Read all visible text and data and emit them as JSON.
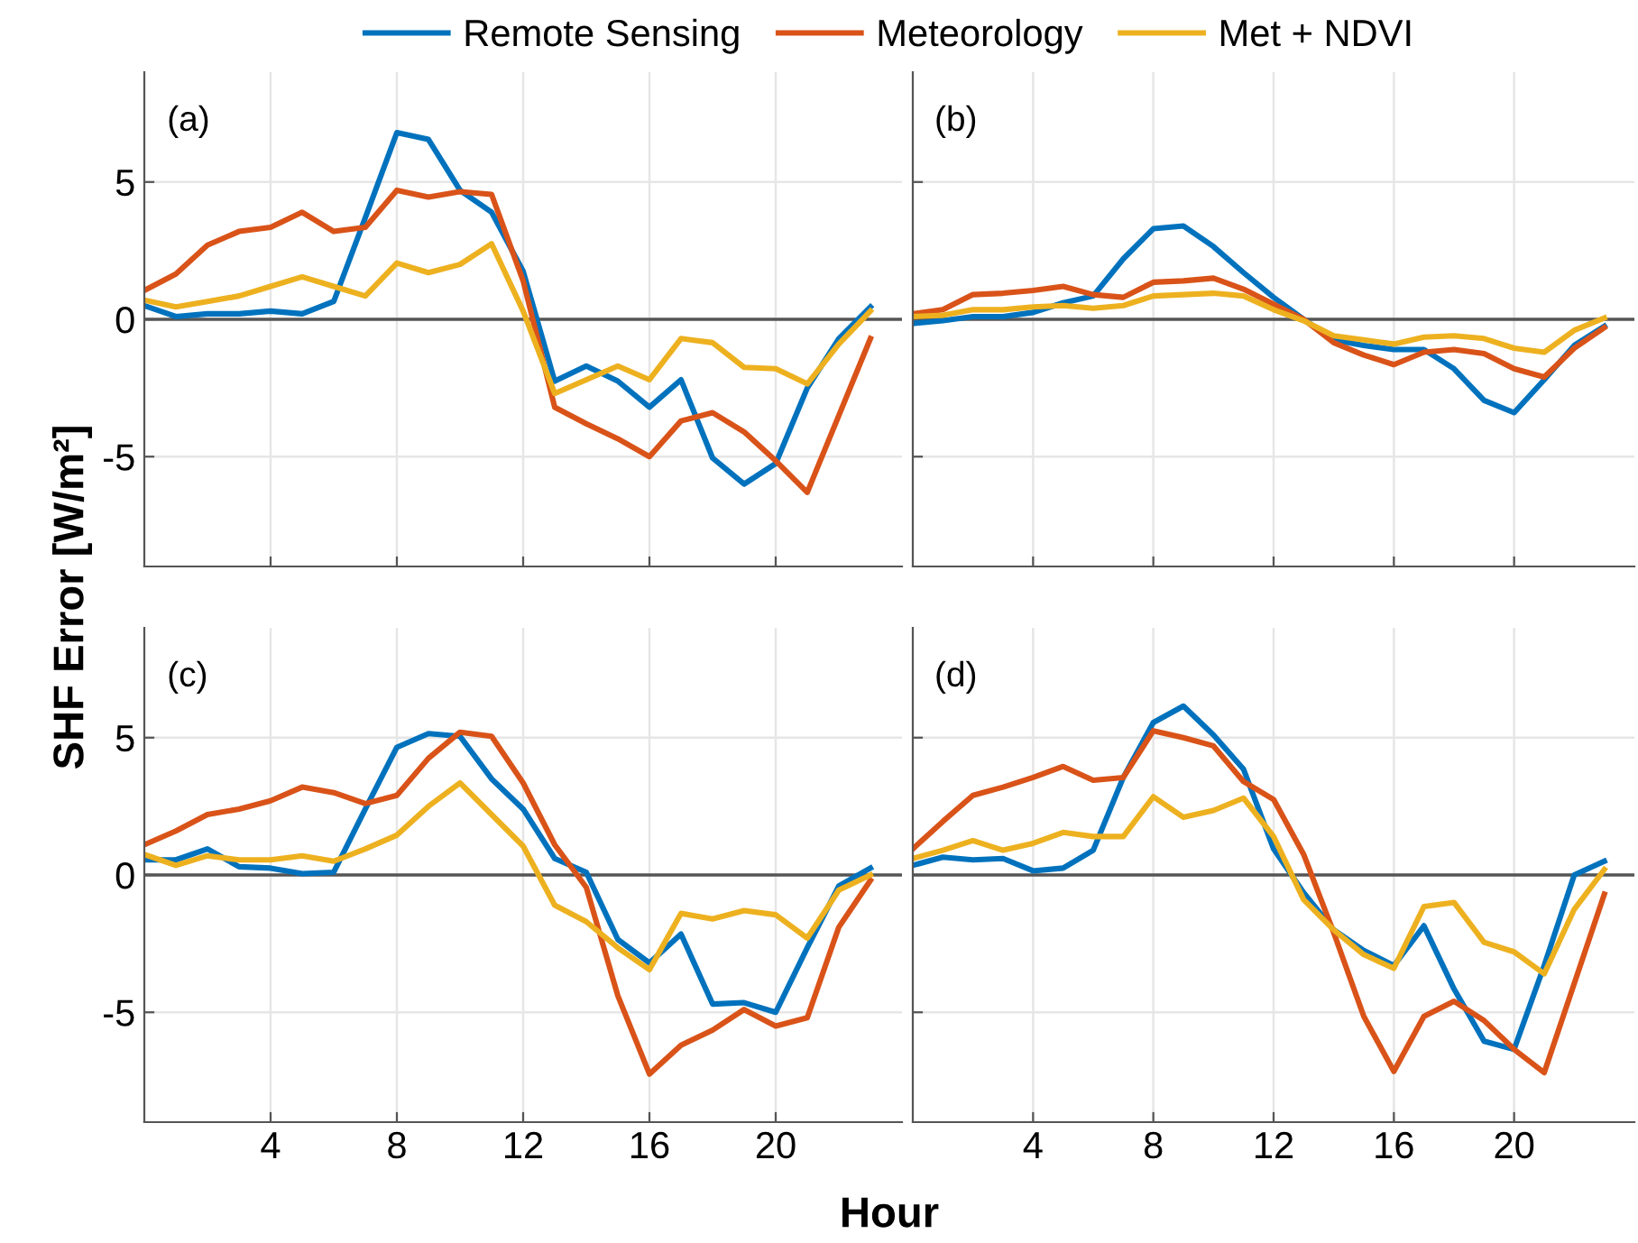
{
  "chart_data": [
    {
      "type": "line",
      "annotations": [
        "(a)"
      ],
      "ylabel": "SHF Error [W/m²]",
      "legend": "top",
      "grid": true,
      "tick_labels": "y",
      "xlim": [
        0,
        24
      ],
      "ylim": [
        -9,
        9
      ],
      "xticks": [
        4,
        8,
        12,
        16,
        20
      ],
      "yticks": [
        -5,
        0,
        5
      ],
      "ref_lines": [
        {
          "axis": "y",
          "value": 0,
          "color": "#555555"
        }
      ],
      "x": [
        0,
        1,
        2,
        3,
        4,
        5,
        6,
        7,
        8,
        9,
        10,
        11,
        12,
        13,
        14,
        15,
        16,
        17,
        18,
        19,
        20,
        21,
        22,
        23
      ],
      "series": [
        {
          "name": "Remote Sensing",
          "color": "#0072bd",
          "values": [
            0.5,
            0.1,
            0.2,
            0.2,
            0.3,
            0.2,
            0.65,
            3.7,
            6.8,
            6.55,
            4.7,
            3.9,
            1.75,
            -2.25,
            -1.7,
            -2.25,
            -3.2,
            -2.2,
            -5.05,
            -6.0,
            -5.25,
            -2.5,
            -0.7,
            0.45
          ]
        },
        {
          "name": "Meteorology",
          "color": "#d95319",
          "values": [
            1.05,
            1.65,
            2.7,
            3.2,
            3.35,
            3.9,
            3.2,
            3.35,
            4.7,
            4.45,
            4.65,
            4.55,
            1.4,
            -3.2,
            -3.8,
            -4.35,
            -5.0,
            -3.7,
            -3.4,
            -4.1,
            -5.15,
            -6.3,
            -3.5,
            -0.7
          ]
        },
        {
          "name": "Met + NDVI",
          "color": "#edb120",
          "values": [
            0.7,
            0.45,
            0.65,
            0.85,
            1.2,
            1.55,
            1.2,
            0.85,
            2.05,
            1.7,
            2.0,
            2.75,
            0.3,
            -2.7,
            -2.2,
            -1.7,
            -2.2,
            -0.7,
            -0.85,
            -1.75,
            -1.8,
            -2.35,
            -0.9,
            0.3
          ]
        }
      ]
    },
    {
      "type": "line",
      "annotations": [
        "(b)"
      ],
      "grid": true,
      "tick_labels": false,
      "xlim": [
        0,
        24
      ],
      "ylim": [
        -9,
        9
      ],
      "xticks": [
        4,
        8,
        12,
        16,
        20
      ],
      "yticks": [
        -5,
        0,
        5
      ],
      "ref_lines": [
        {
          "axis": "y",
          "value": 0,
          "color": "#555555"
        }
      ],
      "x": [
        0,
        1,
        2,
        3,
        4,
        5,
        6,
        7,
        8,
        9,
        10,
        11,
        12,
        13,
        14,
        15,
        16,
        17,
        18,
        19,
        20,
        21,
        22,
        23
      ],
      "series": [
        {
          "color": "#0072bd",
          "values": [
            -0.15,
            -0.05,
            0.1,
            0.1,
            0.25,
            0.6,
            0.85,
            2.2,
            3.3,
            3.4,
            2.65,
            1.7,
            0.8,
            0,
            -0.75,
            -0.95,
            -1.1,
            -1.1,
            -1.8,
            -2.95,
            -3.4,
            -2.2,
            -0.95,
            -0.25
          ]
        },
        {
          "color": "#d95319",
          "values": [
            0.2,
            0.35,
            0.9,
            0.95,
            1.05,
            1.2,
            0.9,
            0.8,
            1.35,
            1.4,
            1.5,
            1.1,
            0.55,
            0,
            -0.85,
            -1.3,
            -1.65,
            -1.2,
            -1.1,
            -1.25,
            -1.8,
            -2.1,
            -1.05,
            -0.3
          ]
        },
        {
          "color": "#edb120",
          "values": [
            0.1,
            0.15,
            0.35,
            0.35,
            0.45,
            0.5,
            0.4,
            0.5,
            0.85,
            0.9,
            0.95,
            0.85,
            0.35,
            -0.05,
            -0.6,
            -0.75,
            -0.9,
            -0.65,
            -0.6,
            -0.7,
            -1.05,
            -1.2,
            -0.4,
            0.05
          ]
        }
      ]
    },
    {
      "type": "line",
      "annotations": [
        "(c)"
      ],
      "xlabel": "Hour",
      "grid": true,
      "xlim": [
        0,
        24
      ],
      "ylim": [
        -9,
        9
      ],
      "xticks": [
        4,
        8,
        12,
        16,
        20
      ],
      "yticks": [
        -5,
        0,
        5
      ],
      "ref_lines": [
        {
          "axis": "y",
          "value": 0,
          "color": "#555555"
        }
      ],
      "x": [
        0,
        1,
        2,
        3,
        4,
        5,
        6,
        7,
        8,
        9,
        10,
        11,
        12,
        13,
        14,
        15,
        16,
        17,
        18,
        19,
        20,
        21,
        22,
        23
      ],
      "series": [
        {
          "color": "#0072bd",
          "values": [
            0.55,
            0.55,
            0.95,
            0.3,
            0.25,
            0.05,
            0.1,
            2.4,
            4.65,
            5.15,
            5.05,
            3.5,
            2.4,
            0.6,
            0.1,
            -2.35,
            -3.2,
            -2.15,
            -4.7,
            -4.65,
            -5.0,
            -2.65,
            -0.4,
            0.25
          ]
        },
        {
          "color": "#d95319",
          "values": [
            1.1,
            1.6,
            2.2,
            2.4,
            2.7,
            3.2,
            3.0,
            2.6,
            2.9,
            4.25,
            5.2,
            5.05,
            3.35,
            1.1,
            -0.45,
            -4.4,
            -7.25,
            -6.2,
            -5.65,
            -4.9,
            -5.5,
            -5.2,
            -1.9,
            -0.2
          ]
        },
        {
          "color": "#edb120",
          "values": [
            0.75,
            0.35,
            0.7,
            0.55,
            0.55,
            0.7,
            0.5,
            0.95,
            1.45,
            2.5,
            3.35,
            2.2,
            1.05,
            -1.1,
            -1.7,
            -2.65,
            -3.45,
            -1.4,
            -1.6,
            -1.3,
            -1.45,
            -2.3,
            -0.55,
            0
          ]
        }
      ]
    },
    {
      "type": "line",
      "annotations": [
        "(d)"
      ],
      "grid": true,
      "tick_labels": "x",
      "xlim": [
        0,
        24
      ],
      "ylim": [
        -9,
        9
      ],
      "xticks": [
        4,
        8,
        12,
        16,
        20
      ],
      "yticks": [
        -5,
        0,
        5
      ],
      "ref_lines": [
        {
          "axis": "y",
          "value": 0,
          "color": "#555555"
        }
      ],
      "x": [
        0,
        1,
        2,
        3,
        4,
        5,
        6,
        7,
        8,
        9,
        10,
        11,
        12,
        13,
        14,
        15,
        16,
        17,
        18,
        19,
        20,
        21,
        22,
        23
      ],
      "series": [
        {
          "color": "#0072bd",
          "values": [
            0.35,
            0.65,
            0.55,
            0.6,
            0.15,
            0.25,
            0.9,
            3.55,
            5.55,
            6.15,
            5.1,
            3.85,
            0.95,
            -0.65,
            -2.0,
            -2.75,
            -3.3,
            -1.85,
            -4.15,
            -6.05,
            -6.35,
            -3.3,
            0,
            0.5
          ]
        },
        {
          "color": "#d95319",
          "values": [
            0.95,
            1.95,
            2.9,
            3.2,
            3.55,
            3.95,
            3.45,
            3.55,
            5.25,
            5.0,
            4.7,
            3.4,
            2.75,
            0.75,
            -2.1,
            -5.15,
            -7.15,
            -5.15,
            -4.6,
            -5.3,
            -6.35,
            -7.2,
            -3.95,
            -0.7
          ]
        },
        {
          "color": "#edb120",
          "values": [
            0.6,
            0.9,
            1.25,
            0.9,
            1.15,
            1.55,
            1.4,
            1.4,
            2.85,
            2.1,
            2.35,
            2.8,
            1.4,
            -0.9,
            -2.0,
            -2.9,
            -3.4,
            -1.15,
            -1.0,
            -2.45,
            -2.8,
            -3.6,
            -1.25,
            0.2
          ]
        }
      ]
    }
  ]
}
